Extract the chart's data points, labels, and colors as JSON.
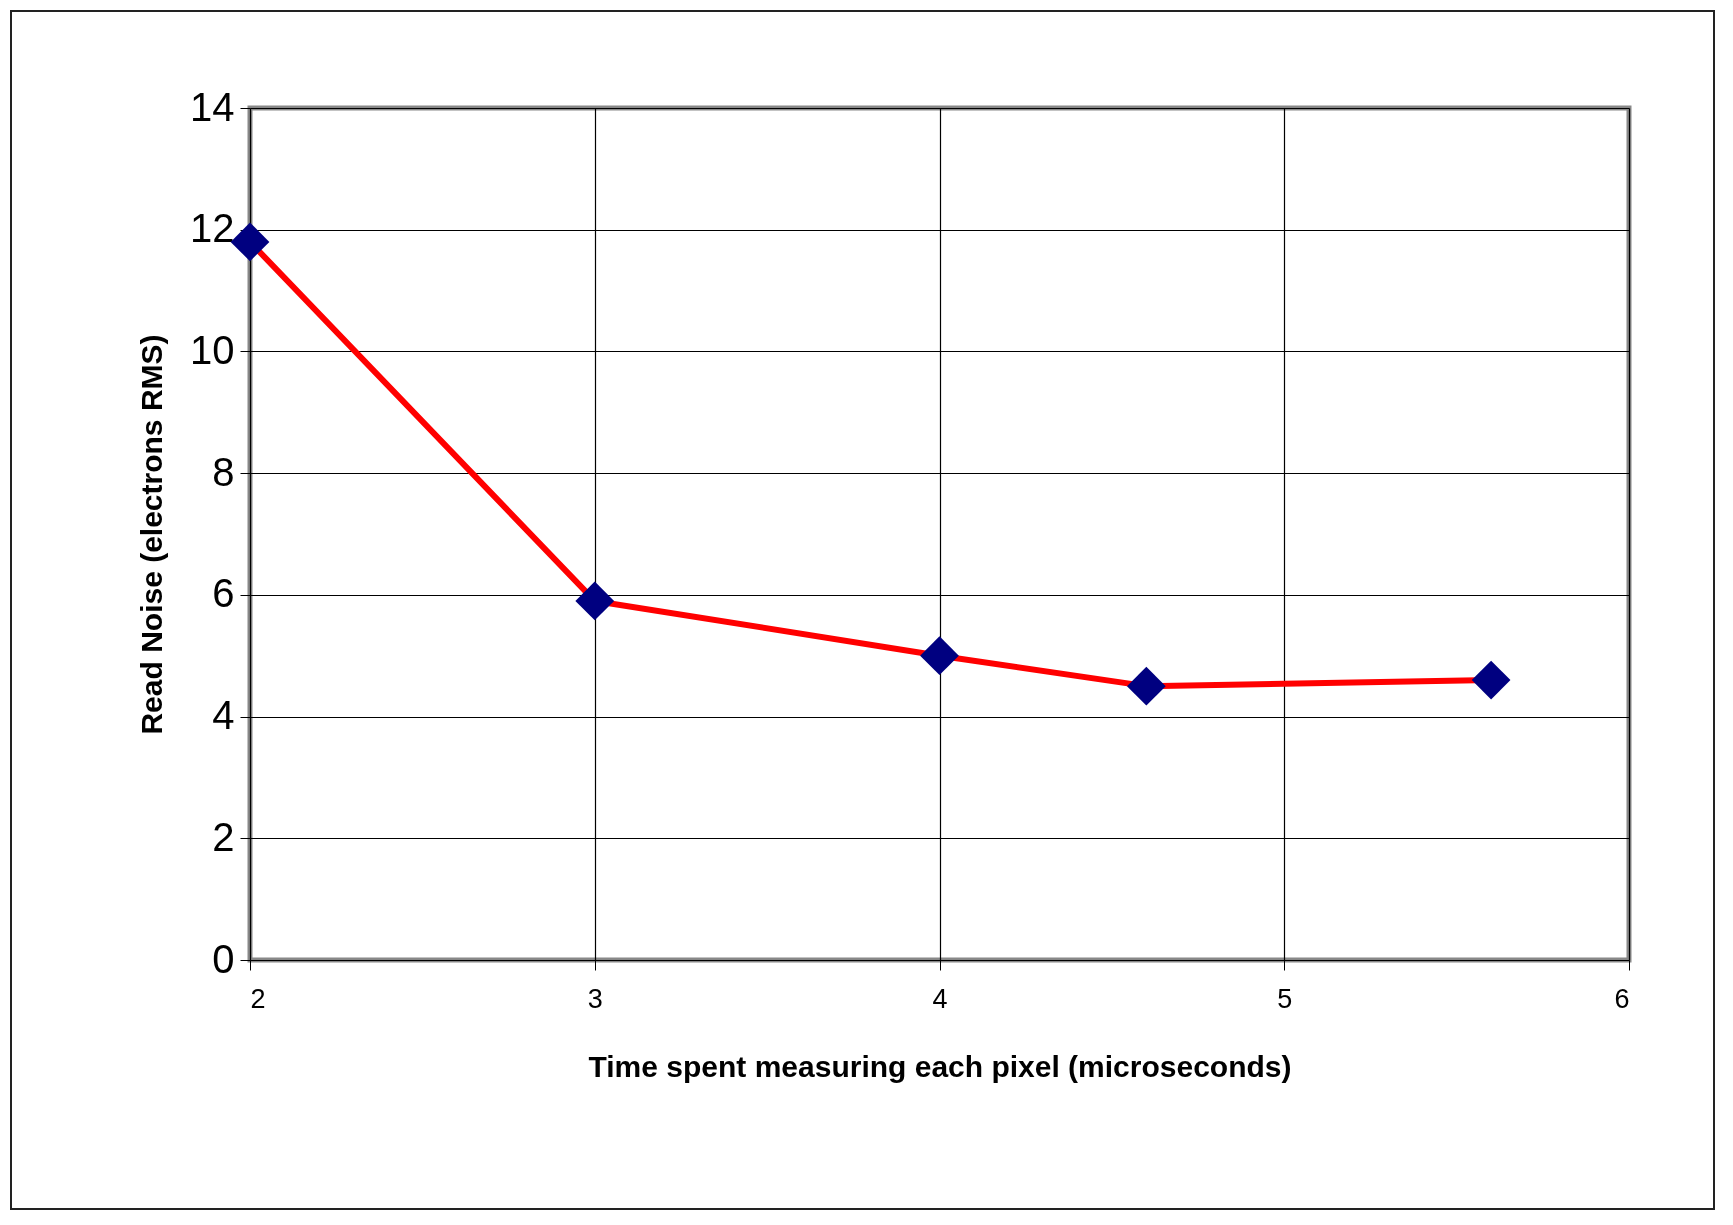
{
  "chart_data": {
    "type": "line",
    "xlabel": "Time spent measuring each pixel (microseconds)",
    "ylabel": "Read Noise (electrons RMS)",
    "x": [
      2,
      3,
      4,
      4.6,
      5.6
    ],
    "series": [
      {
        "color": "#ff0000",
        "colors": [
          "#000080",
          "#000080",
          "#000080",
          "#000080",
          "#000080"
        ],
        "values": [
          11.8,
          5.9,
          5.0,
          4.5,
          4.6
        ]
      }
    ],
    "xlim": [
      2,
      6
    ],
    "xticks": [
      2,
      3,
      4,
      5,
      6
    ],
    "ylim": [
      0,
      14
    ],
    "yticks": [
      0,
      2,
      4,
      6,
      8,
      10,
      12,
      14
    ],
    "grid": true,
    "marker": "diamond",
    "line_style": "solid"
  }
}
